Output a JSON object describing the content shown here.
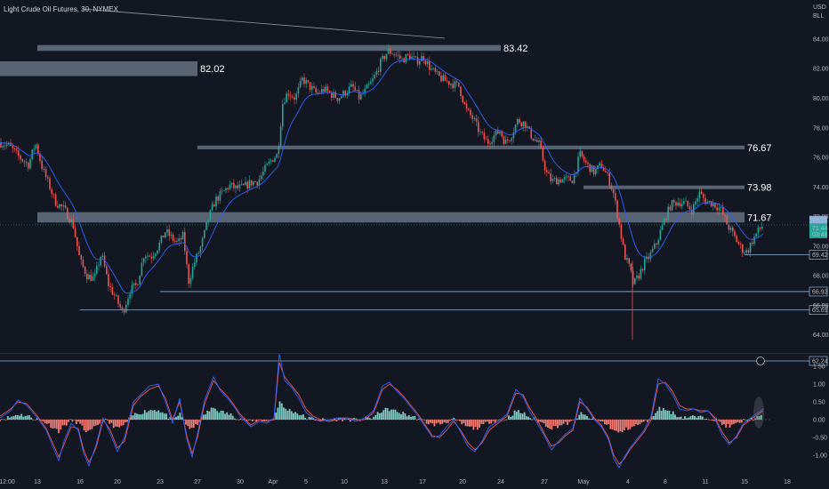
{
  "header": {
    "title": "Light Crude Oil Futures, 30, NYMEX",
    "currency": "USD",
    "unit": "BLL"
  },
  "colors": {
    "background": "#131722",
    "zone": "#b8cce8",
    "up_candle": "#26a69a",
    "down_candle": "#ef5350",
    "ma_line": "#2962ff",
    "level_line": "#8fb1d8",
    "hist_up": "#80cbc4",
    "hist_down": "#f77c73",
    "osc_blue": "#2962ff",
    "osc_red": "#ef5350"
  },
  "chart_data": [
    {
      "type": "candlestick",
      "price_axis": {
        "ticks": [
          "84.00",
          "82.00",
          "80.00",
          "78.00",
          "76.00",
          "74.00",
          "72.00",
          "70.00",
          "68.00",
          "66.00",
          "64.00"
        ],
        "ylim": [
          62.6,
          85.2
        ]
      },
      "x_axis": {
        "ticks": [
          "12:00",
          "13",
          "16",
          "20",
          "23",
          "27",
          "30",
          "Apr",
          "5",
          "10",
          "13",
          "17",
          "20",
          "24",
          "27",
          "May",
          "4",
          "8",
          "11",
          "15",
          "18"
        ]
      },
      "zones": [
        {
          "label": "83.42",
          "low": 83.2,
          "high": 83.6,
          "start": "13",
          "end": "24"
        },
        {
          "label": "82.02",
          "low": 81.5,
          "high": 82.5,
          "start": "12:00",
          "end": "27"
        },
        {
          "label": "76.67",
          "low": 76.55,
          "high": 76.8,
          "start": "27",
          "end": "15"
        },
        {
          "label": "73.98",
          "low": 73.9,
          "high": 74.1,
          "start": "May",
          "end": "15"
        },
        {
          "label": "71.67",
          "low": 71.6,
          "high": 72.3,
          "start": "13",
          "end": "15"
        }
      ],
      "levels": [
        {
          "label": "66.93",
          "value": 66.93,
          "start": "23"
        },
        {
          "label": "65.69",
          "value": 65.69,
          "start": "16"
        },
        {
          "label": "62.24",
          "value": 62.24,
          "start": "12:00"
        },
        {
          "label": "69.42",
          "value": 69.42,
          "start": "15"
        }
      ],
      "price_label": {
        "values": [
          "71.75",
          "71.44",
          "03:48"
        ]
      },
      "price_path": [
        [
          0,
          77.0
        ],
        [
          10,
          76.8
        ],
        [
          22,
          76.0
        ],
        [
          32,
          75.5
        ],
        [
          40,
          77.0
        ],
        [
          48,
          75.2
        ],
        [
          56,
          74.0
        ],
        [
          62,
          73.0
        ],
        [
          72,
          72.5
        ],
        [
          82,
          71.5
        ],
        [
          90,
          69.0
        ],
        [
          98,
          68.0
        ],
        [
          106,
          67.8
        ],
        [
          114,
          69.5
        ],
        [
          122,
          67.4
        ],
        [
          130,
          66.5
        ],
        [
          138,
          65.5
        ],
        [
          146,
          67.0
        ],
        [
          154,
          67.4
        ],
        [
          162,
          69.5
        ],
        [
          170,
          69.3
        ],
        [
          178,
          70.0
        ],
        [
          186,
          71.0
        ],
        [
          194,
          70.5
        ],
        [
          200,
          70.2
        ],
        [
          206,
          70.7
        ],
        [
          212,
          67.6
        ],
        [
          218,
          68.8
        ],
        [
          226,
          70.0
        ],
        [
          234,
          71.8
        ],
        [
          242,
          73.1
        ],
        [
          250,
          73.6
        ],
        [
          258,
          74.1
        ],
        [
          266,
          73.9
        ],
        [
          274,
          74.0
        ],
        [
          282,
          74.3
        ],
        [
          290,
          74.4
        ],
        [
          298,
          75.2
        ],
        [
          306,
          75.9
        ],
        [
          312,
          76.2
        ],
        [
          318,
          79.8
        ],
        [
          324,
          80.4
        ],
        [
          332,
          80.0
        ],
        [
          340,
          81.3
        ],
        [
          348,
          80.8
        ],
        [
          356,
          80.3
        ],
        [
          364,
          80.6
        ],
        [
          372,
          80.3
        ],
        [
          380,
          80.0
        ],
        [
          388,
          80.4
        ],
        [
          396,
          80.8
        ],
        [
          404,
          80.0
        ],
        [
          412,
          80.6
        ],
        [
          420,
          81.3
        ],
        [
          428,
          82.4
        ],
        [
          436,
          83.2
        ],
        [
          444,
          83.0
        ],
        [
          452,
          82.6
        ],
        [
          460,
          82.9
        ],
        [
          468,
          82.5
        ],
        [
          476,
          82.8
        ],
        [
          484,
          82.0
        ],
        [
          492,
          81.5
        ],
        [
          500,
          81.2
        ],
        [
          508,
          81.0
        ],
        [
          516,
          80.8
        ],
        [
          524,
          79.2
        ],
        [
          532,
          78.6
        ],
        [
          540,
          77.6
        ],
        [
          548,
          77.0
        ],
        [
          556,
          77.5
        ],
        [
          562,
          77.8
        ],
        [
          568,
          77.0
        ],
        [
          574,
          77.4
        ],
        [
          582,
          78.5
        ],
        [
          590,
          78.3
        ],
        [
          598,
          77.4
        ],
        [
          606,
          76.9
        ],
        [
          614,
          75.0
        ],
        [
          620,
          74.4
        ],
        [
          628,
          74.5
        ],
        [
          636,
          74.5
        ],
        [
          644,
          74.5
        ],
        [
          652,
          76.2
        ],
        [
          660,
          75.5
        ],
        [
          668,
          75.0
        ],
        [
          676,
          75.5
        ],
        [
          684,
          74.6
        ],
        [
          690,
          73.5
        ],
        [
          696,
          71.5
        ],
        [
          702,
          69.4
        ],
        [
          708,
          68.5
        ],
        [
          712,
          67.4
        ],
        [
          718,
          68.0
        ],
        [
          724,
          68.8
        ],
        [
          730,
          69.3
        ],
        [
          738,
          70.2
        ],
        [
          746,
          71.6
        ],
        [
          754,
          72.8
        ],
        [
          762,
          73.0
        ],
        [
          770,
          72.9
        ],
        [
          778,
          72.4
        ],
        [
          786,
          73.6
        ],
        [
          794,
          73.0
        ],
        [
          802,
          72.9
        ],
        [
          810,
          72.5
        ],
        [
          818,
          71.4
        ],
        [
          826,
          70.6
        ],
        [
          834,
          69.8
        ],
        [
          840,
          69.6
        ],
        [
          846,
          70.4
        ],
        [
          852,
          71.0
        ],
        [
          858,
          71.44
        ]
      ]
    },
    {
      "type": "oscillator",
      "axis": {
        "ticks": [
          "1.50",
          "1.00",
          "0.50",
          "0.00",
          "-0.50",
          "-1.00"
        ],
        "ylim": [
          -1.45,
          1.85
        ]
      },
      "blue_line": [
        [
          0,
          0.05
        ],
        [
          12,
          0.25
        ],
        [
          20,
          0.55
        ],
        [
          30,
          0.4
        ],
        [
          42,
          0.05
        ],
        [
          52,
          -0.3
        ],
        [
          60,
          -0.8
        ],
        [
          66,
          -1.15
        ],
        [
          72,
          -0.6
        ],
        [
          80,
          -0.1
        ],
        [
          88,
          -0.3
        ],
        [
          94,
          -0.95
        ],
        [
          100,
          -1.3
        ],
        [
          108,
          -0.7
        ],
        [
          116,
          0.05
        ],
        [
          124,
          -0.4
        ],
        [
          132,
          -0.9
        ],
        [
          140,
          -0.5
        ],
        [
          150,
          0.5
        ],
        [
          158,
          0.7
        ],
        [
          168,
          0.95
        ],
        [
          178,
          1.0
        ],
        [
          186,
          0.5
        ],
        [
          194,
          -0.1
        ],
        [
          202,
          0.6
        ],
        [
          210,
          -0.55
        ],
        [
          216,
          -1.05
        ],
        [
          222,
          -0.4
        ],
        [
          230,
          0.55
        ],
        [
          240,
          1.2
        ],
        [
          248,
          0.8
        ],
        [
          256,
          0.6
        ],
        [
          262,
          0.4
        ],
        [
          270,
          0.1
        ],
        [
          282,
          -0.2
        ],
        [
          292,
          -0.05
        ],
        [
          300,
          -0.1
        ],
        [
          308,
          0.05
        ],
        [
          314,
          1.85
        ],
        [
          320,
          1.1
        ],
        [
          328,
          0.9
        ],
        [
          336,
          0.6
        ],
        [
          344,
          0.2
        ],
        [
          352,
          0.05
        ],
        [
          360,
          -0.05
        ],
        [
          370,
          0.0
        ],
        [
          380,
          0.05
        ],
        [
          390,
          0.05
        ],
        [
          400,
          -0.05
        ],
        [
          410,
          0.05
        ],
        [
          420,
          0.25
        ],
        [
          430,
          0.95
        ],
        [
          438,
          1.05
        ],
        [
          446,
          0.8
        ],
        [
          454,
          0.6
        ],
        [
          462,
          0.35
        ],
        [
          470,
          0.1
        ],
        [
          478,
          -0.2
        ],
        [
          486,
          -0.5
        ],
        [
          494,
          -0.45
        ],
        [
          502,
          -0.2
        ],
        [
          510,
          0.0
        ],
        [
          518,
          -0.35
        ],
        [
          526,
          -0.75
        ],
        [
          534,
          -0.9
        ],
        [
          542,
          -0.6
        ],
        [
          550,
          -0.2
        ],
        [
          560,
          -0.05
        ],
        [
          570,
          0.15
        ],
        [
          580,
          0.85
        ],
        [
          588,
          0.65
        ],
        [
          596,
          0.2
        ],
        [
          604,
          -0.1
        ],
        [
          612,
          -0.45
        ],
        [
          620,
          -0.85
        ],
        [
          628,
          -0.6
        ],
        [
          636,
          -0.4
        ],
        [
          644,
          -0.25
        ],
        [
          652,
          0.6
        ],
        [
          660,
          0.3
        ],
        [
          668,
          0.0
        ],
        [
          676,
          -0.2
        ],
        [
          684,
          -0.55
        ],
        [
          690,
          -1.1
        ],
        [
          696,
          -1.35
        ],
        [
          702,
          -1.05
        ],
        [
          708,
          -0.8
        ],
        [
          716,
          -0.55
        ],
        [
          724,
          -0.3
        ],
        [
          732,
          0.1
        ],
        [
          740,
          1.15
        ],
        [
          748,
          1.0
        ],
        [
          756,
          0.7
        ],
        [
          764,
          0.3
        ],
        [
          772,
          0.25
        ],
        [
          780,
          0.3
        ],
        [
          788,
          0.2
        ],
        [
          796,
          0.25
        ],
        [
          804,
          0.0
        ],
        [
          812,
          -0.45
        ],
        [
          820,
          -0.7
        ],
        [
          828,
          -0.45
        ],
        [
          836,
          -0.1
        ],
        [
          844,
          0.05
        ],
        [
          852,
          0.2
        ],
        [
          858,
          0.3
        ]
      ],
      "red_line": [
        [
          0,
          0.1
        ],
        [
          12,
          0.3
        ],
        [
          20,
          0.5
        ],
        [
          30,
          0.45
        ],
        [
          42,
          0.1
        ],
        [
          52,
          -0.25
        ],
        [
          60,
          -0.7
        ],
        [
          66,
          -1.05
        ],
        [
          72,
          -0.7
        ],
        [
          80,
          -0.2
        ],
        [
          88,
          -0.25
        ],
        [
          94,
          -0.85
        ],
        [
          100,
          -1.2
        ],
        [
          108,
          -0.8
        ],
        [
          116,
          0.0
        ],
        [
          124,
          -0.3
        ],
        [
          132,
          -0.8
        ],
        [
          140,
          -0.6
        ],
        [
          150,
          0.4
        ],
        [
          158,
          0.65
        ],
        [
          168,
          0.85
        ],
        [
          178,
          0.95
        ],
        [
          186,
          0.6
        ],
        [
          194,
          0.0
        ],
        [
          202,
          0.5
        ],
        [
          210,
          -0.45
        ],
        [
          216,
          -0.95
        ],
        [
          222,
          -0.5
        ],
        [
          230,
          0.45
        ],
        [
          240,
          1.1
        ],
        [
          248,
          0.85
        ],
        [
          256,
          0.65
        ],
        [
          262,
          0.45
        ],
        [
          270,
          0.15
        ],
        [
          282,
          -0.15
        ],
        [
          292,
          0.0
        ],
        [
          300,
          -0.05
        ],
        [
          308,
          0.0
        ],
        [
          314,
          1.6
        ],
        [
          320,
          1.2
        ],
        [
          328,
          0.95
        ],
        [
          336,
          0.7
        ],
        [
          344,
          0.3
        ],
        [
          352,
          0.1
        ],
        [
          360,
          0.0
        ],
        [
          370,
          -0.05
        ],
        [
          380,
          0.0
        ],
        [
          390,
          0.05
        ],
        [
          400,
          0.0
        ],
        [
          410,
          0.0
        ],
        [
          420,
          0.2
        ],
        [
          430,
          0.85
        ],
        [
          438,
          1.0
        ],
        [
          446,
          0.85
        ],
        [
          454,
          0.65
        ],
        [
          462,
          0.4
        ],
        [
          470,
          0.15
        ],
        [
          478,
          -0.15
        ],
        [
          486,
          -0.45
        ],
        [
          494,
          -0.5
        ],
        [
          502,
          -0.3
        ],
        [
          510,
          -0.05
        ],
        [
          518,
          -0.3
        ],
        [
          526,
          -0.65
        ],
        [
          534,
          -0.85
        ],
        [
          542,
          -0.65
        ],
        [
          550,
          -0.3
        ],
        [
          560,
          -0.1
        ],
        [
          570,
          0.1
        ],
        [
          580,
          0.75
        ],
        [
          588,
          0.7
        ],
        [
          596,
          0.3
        ],
        [
          604,
          0.0
        ],
        [
          612,
          -0.4
        ],
        [
          620,
          -0.75
        ],
        [
          628,
          -0.65
        ],
        [
          636,
          -0.45
        ],
        [
          644,
          -0.3
        ],
        [
          652,
          0.5
        ],
        [
          660,
          0.35
        ],
        [
          668,
          0.05
        ],
        [
          676,
          -0.15
        ],
        [
          684,
          -0.5
        ],
        [
          690,
          -1.0
        ],
        [
          696,
          -1.25
        ],
        [
          702,
          -1.1
        ],
        [
          708,
          -0.85
        ],
        [
          716,
          -0.6
        ],
        [
          724,
          -0.35
        ],
        [
          732,
          0.0
        ],
        [
          740,
          1.0
        ],
        [
          748,
          1.05
        ],
        [
          756,
          0.8
        ],
        [
          764,
          0.4
        ],
        [
          772,
          0.3
        ],
        [
          780,
          0.3
        ],
        [
          788,
          0.25
        ],
        [
          796,
          0.25
        ],
        [
          804,
          0.05
        ],
        [
          812,
          -0.35
        ],
        [
          820,
          -0.65
        ],
        [
          828,
          -0.5
        ],
        [
          836,
          -0.15
        ],
        [
          844,
          0.0
        ],
        [
          852,
          0.15
        ],
        [
          858,
          0.25
        ]
      ]
    }
  ]
}
